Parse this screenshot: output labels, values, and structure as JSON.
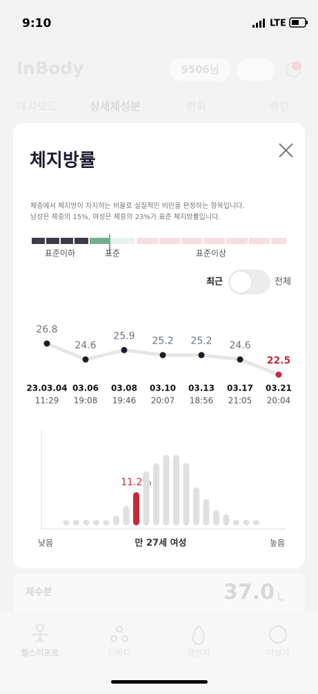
{
  "status": {
    "time": "9:10",
    "network": "LTE"
  },
  "background": {
    "logo": "InBody",
    "points": "9506님",
    "tabs": [
      "대시보드",
      "상세체성분",
      "변화",
      "랭킹"
    ],
    "card": {
      "label": "체수분",
      "value": "37.0",
      "unit": "L"
    }
  },
  "nav": [
    "헬스리포트",
    "인바디",
    "챌린지",
    "더보기"
  ],
  "modal": {
    "title": "체지방률",
    "description": [
      "체중에서 체지방이 차지하는 비율로 실질적인 비만을 판정하는 항목입니다.",
      "남성은 체중의 15%, 여성은 체중의 23%가 표준 체지방률입니다."
    ],
    "scale_labels": [
      "표준이하",
      "표준",
      "표준이상"
    ],
    "toggle": [
      "최근",
      "전체"
    ],
    "chart_data": {
      "type": "line",
      "values": [
        26.8,
        24.6,
        25.9,
        25.2,
        25.2,
        24.6,
        22.5
      ],
      "categories": [
        "23.03.04",
        "03.06",
        "03.08",
        "03.10",
        "03.13",
        "03.17",
        "03.21"
      ],
      "times": [
        "11:29",
        "19:08",
        "19:46",
        "20:07",
        "18:56",
        "21:05",
        "20:04"
      ],
      "color": "#1c1c2e",
      "last_color": "#c8283c"
    },
    "distribution": {
      "type": "bar",
      "values": [
        8,
        8,
        8,
        8,
        8,
        14,
        28,
        48,
        78,
        90,
        102,
        102,
        90,
        55,
        38,
        22,
        16,
        8,
        8,
        8
      ],
      "ylim": [
        0,
        110
      ],
      "color": "#e0e0e0",
      "highlight_index": 7,
      "highlight_color": "#c8283c",
      "highlight_label": "11.2%",
      "low": "낮음",
      "group": "만 27세 여성",
      "high": "높음"
    }
  }
}
